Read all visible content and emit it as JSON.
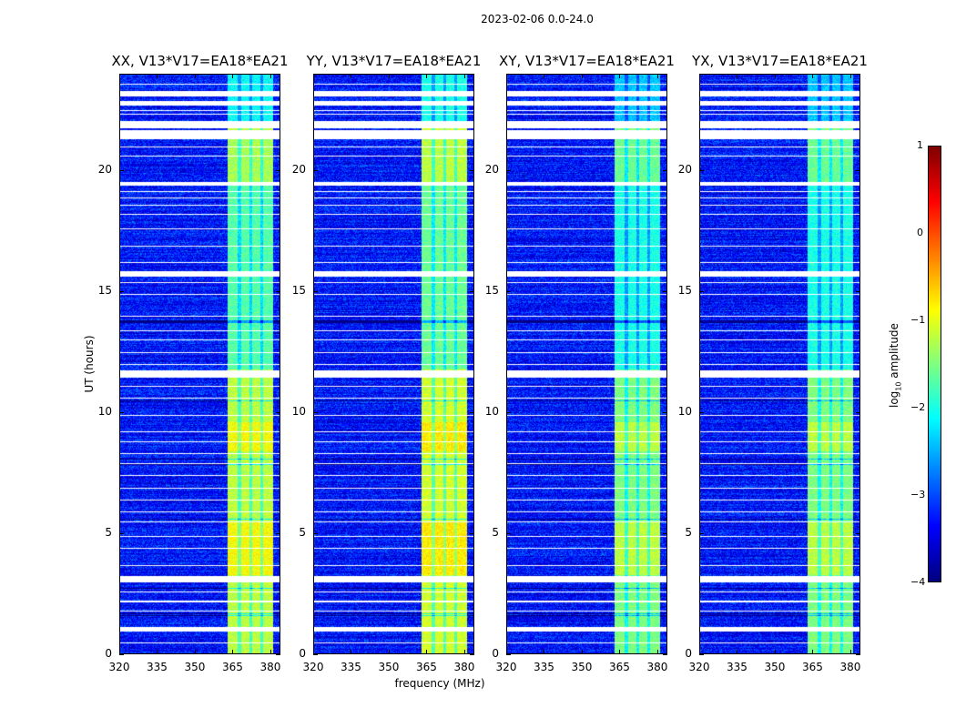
{
  "chart_data": {
    "type": "heatmap",
    "title": "2023-02-06 0.0-24.0",
    "xlabel": "frequency (MHz)",
    "ylabel": "UT (hours)",
    "xlim": [
      320,
      384
    ],
    "ylim": [
      0,
      24
    ],
    "xticks": [
      "320",
      "335",
      "350",
      "365",
      "380"
    ],
    "xtick_values": [
      320,
      335,
      350,
      365,
      380
    ],
    "yticks": [
      "0",
      "5",
      "10",
      "15",
      "20"
    ],
    "ytick_values": [
      0,
      5,
      10,
      15,
      20
    ],
    "panels": [
      {
        "title": "XX, V13*V17=EA18*EA21",
        "band_level": -1.2
      },
      {
        "title": "YY, V13*V17=EA18*EA21",
        "band_level": -1.1
      },
      {
        "title": "XY, V13*V17=EA18*EA21",
        "band_level": -1.5
      },
      {
        "title": "YX, V13*V17=EA18*EA21",
        "band_level": -1.5
      }
    ],
    "rfi_band_mhz": [
      363,
      381
    ],
    "rfi_channel_gaps_mhz": [
      367.5,
      372,
      376.5
    ],
    "background_level": -3.3,
    "blank_intervals_ut": [
      [
        23.07,
        23.3
      ],
      [
        22.7,
        22.9
      ],
      [
        21.75,
        22.05
      ],
      [
        21.3,
        21.7
      ],
      [
        19.4,
        19.55
      ],
      [
        15.62,
        15.84
      ],
      [
        11.46,
        11.76
      ],
      [
        3.0,
        3.26
      ],
      [
        0.97,
        1.16
      ]
    ],
    "thin_blank_lines_ut": [
      23.6,
      22.5,
      22.35,
      21.0,
      20.6,
      19.15,
      18.9,
      18.6,
      18.2,
      17.6,
      16.9,
      16.2,
      15.4,
      14.9,
      14.0,
      13.4,
      13.0,
      12.5,
      12.0,
      11.1,
      10.6,
      9.9,
      9.2,
      8.8,
      8.3,
      7.9,
      7.4,
      6.9,
      6.4,
      5.9,
      5.5,
      4.9,
      4.4,
      3.7,
      2.6,
      2.2,
      1.8,
      0.5
    ],
    "dark_lines_ut": [
      13.8,
      13.75,
      10.5,
      8.1,
      7.85,
      5.6,
      2.75,
      1.7,
      1.6
    ],
    "colorbar": {
      "label": "log10 amplitude",
      "label_base": "log",
      "label_sub": "10",
      "label_rest": " amplitude",
      "range": [
        -4,
        1
      ],
      "ticks": [
        "1",
        "0",
        "−1",
        "−2",
        "−3",
        "−4"
      ],
      "tick_values": [
        1,
        0,
        -1,
        -2,
        -3,
        -4
      ],
      "colormap": "jet"
    }
  }
}
